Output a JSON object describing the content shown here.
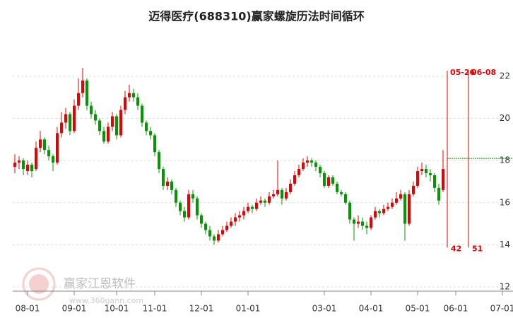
{
  "chart_data": {
    "type": "candlestick",
    "title": "迈得医疗(688310)赢家螺旋历法时间循环",
    "watermark": [
      "赢家江恩软件",
      "www.360gann.com"
    ],
    "up_color": "#e60000",
    "down_color": "#009900",
    "ylim": [
      11.8,
      22.6
    ],
    "yticks": [
      12,
      14,
      16,
      18,
      20,
      22
    ],
    "grid": true,
    "categories": [
      null,
      null,
      null,
      "08-01",
      null,
      null,
      null,
      null,
      null,
      null,
      null,
      null,
      null,
      null,
      "09-01",
      null,
      null,
      null,
      null,
      null,
      null,
      null,
      null,
      null,
      "10-01",
      null,
      null,
      null,
      null,
      null,
      null,
      null,
      null,
      "11-01",
      null,
      null,
      null,
      null,
      null,
      null,
      null,
      null,
      null,
      null,
      "12-01",
      null,
      null,
      null,
      null,
      null,
      null,
      null,
      null,
      null,
      null,
      "01-01",
      null,
      null,
      null,
      null,
      null,
      null,
      null,
      null,
      null,
      null,
      null,
      null,
      null,
      null,
      null,
      null,
      null,
      "03-01",
      null,
      null,
      null,
      null,
      null,
      null,
      null,
      null,
      null,
      null,
      "04-01",
      null,
      null,
      null,
      null,
      null,
      null,
      null,
      null,
      null,
      null,
      "05-01",
      null,
      null,
      null,
      null,
      null,
      null,
      "05-26",
      null,
      "06-01",
      null,
      null,
      "06-08",
      null,
      null,
      null,
      null,
      null,
      null,
      null,
      "07-01",
      null,
      null
    ],
    "xticks": [
      "08-01",
      "09-01",
      "10-01",
      "11-01",
      "12-01",
      "01-01",
      "03-01",
      "04-01",
      "05-01",
      "06-01",
      "07-01"
    ],
    "ohlc": [
      [
        17.7,
        18.3,
        17.4,
        17.9
      ],
      [
        17.9,
        18.2,
        17.6,
        18.0
      ],
      [
        18.0,
        18.1,
        17.3,
        17.6
      ],
      [
        17.5,
        18.0,
        17.3,
        17.8
      ],
      [
        17.8,
        17.9,
        17.2,
        17.5
      ],
      [
        17.6,
        18.9,
        17.5,
        18.6
      ],
      [
        18.6,
        19.4,
        18.4,
        19.0
      ],
      [
        19.0,
        19.1,
        18.3,
        18.5
      ],
      [
        18.5,
        18.7,
        18.0,
        18.2
      ],
      [
        18.2,
        18.3,
        17.5,
        17.9
      ],
      [
        17.9,
        19.6,
        17.8,
        19.3
      ],
      [
        19.3,
        20.3,
        19.1,
        19.8
      ],
      [
        19.8,
        20.5,
        19.5,
        20.2
      ],
      [
        20.2,
        20.3,
        19.2,
        19.4
      ],
      [
        19.4,
        20.9,
        19.3,
        20.6
      ],
      [
        20.6,
        21.9,
        20.4,
        21.2
      ],
      [
        21.2,
        22.4,
        21.0,
        21.8
      ],
      [
        21.8,
        21.9,
        20.4,
        20.6
      ],
      [
        20.6,
        20.8,
        20.0,
        20.2
      ],
      [
        20.2,
        20.4,
        19.7,
        19.9
      ],
      [
        19.9,
        20.0,
        19.2,
        19.4
      ],
      [
        19.4,
        19.6,
        18.8,
        18.9
      ],
      [
        18.9,
        19.8,
        18.8,
        19.6
      ],
      [
        19.6,
        20.3,
        19.4,
        20.1
      ],
      [
        20.1,
        20.2,
        19.0,
        19.2
      ],
      [
        19.2,
        20.6,
        19.1,
        20.4
      ],
      [
        20.4,
        21.3,
        20.2,
        21.0
      ],
      [
        21.0,
        21.6,
        20.8,
        21.2
      ],
      [
        21.2,
        21.4,
        20.8,
        21.0
      ],
      [
        21.0,
        21.2,
        20.4,
        20.6
      ],
      [
        20.6,
        20.7,
        19.6,
        19.8
      ],
      [
        19.8,
        19.9,
        19.2,
        19.4
      ],
      [
        19.4,
        19.6,
        19.0,
        19.2
      ],
      [
        19.2,
        19.3,
        18.2,
        18.4
      ],
      [
        18.4,
        18.5,
        17.4,
        17.6
      ],
      [
        17.6,
        17.7,
        16.6,
        16.8
      ],
      [
        16.8,
        17.2,
        16.6,
        17.0
      ],
      [
        17.0,
        17.1,
        16.4,
        16.6
      ],
      [
        16.6,
        16.7,
        15.8,
        16.0
      ],
      [
        16.0,
        16.1,
        15.4,
        15.6
      ],
      [
        15.6,
        15.8,
        15.1,
        15.3
      ],
      [
        15.3,
        16.6,
        15.2,
        16.4
      ],
      [
        16.4,
        16.6,
        16.0,
        16.2
      ],
      [
        16.2,
        16.3,
        15.2,
        15.4
      ],
      [
        15.4,
        15.5,
        14.8,
        15.0
      ],
      [
        15.0,
        15.1,
        14.5,
        14.7
      ],
      [
        14.7,
        14.9,
        14.2,
        14.4
      ],
      [
        14.4,
        14.5,
        14.0,
        14.2
      ],
      [
        14.2,
        14.7,
        14.1,
        14.5
      ],
      [
        14.5,
        14.9,
        14.4,
        14.7
      ],
      [
        14.7,
        15.1,
        14.6,
        14.9
      ],
      [
        14.9,
        15.3,
        14.8,
        15.1
      ],
      [
        15.1,
        15.5,
        14.9,
        15.3
      ],
      [
        15.3,
        15.6,
        15.1,
        15.4
      ],
      [
        15.4,
        15.8,
        15.2,
        15.6
      ],
      [
        15.6,
        16.0,
        15.5,
        15.8
      ],
      [
        15.8,
        15.9,
        15.5,
        15.7
      ],
      [
        15.7,
        16.2,
        15.6,
        16.0
      ],
      [
        16.0,
        16.3,
        15.9,
        16.1
      ],
      [
        16.1,
        16.2,
        15.8,
        16.0
      ],
      [
        16.0,
        16.5,
        15.9,
        16.3
      ],
      [
        16.3,
        16.6,
        16.2,
        16.4
      ],
      [
        16.4,
        18.0,
        16.3,
        16.6
      ],
      [
        16.6,
        16.7,
        15.9,
        16.2
      ],
      [
        16.2,
        16.7,
        16.1,
        16.5
      ],
      [
        16.5,
        17.1,
        16.4,
        16.9
      ],
      [
        16.9,
        17.5,
        16.8,
        17.3
      ],
      [
        17.3,
        17.8,
        17.2,
        17.6
      ],
      [
        17.6,
        18.1,
        17.5,
        17.9
      ],
      [
        17.9,
        18.2,
        17.7,
        18.0
      ],
      [
        18.0,
        18.1,
        17.7,
        17.9
      ],
      [
        17.9,
        18.0,
        17.5,
        17.7
      ],
      [
        17.7,
        17.8,
        17.2,
        17.4
      ],
      [
        17.4,
        17.5,
        16.7,
        16.8
      ],
      [
        16.8,
        17.3,
        16.7,
        17.2
      ],
      [
        17.2,
        17.3,
        16.8,
        16.9
      ],
      [
        16.9,
        17.0,
        16.4,
        16.5
      ],
      [
        16.5,
        16.6,
        16.3,
        16.4
      ],
      [
        16.4,
        16.5,
        15.9,
        16.0
      ],
      [
        16.0,
        16.1,
        15.0,
        15.2
      ],
      [
        15.2,
        15.3,
        14.2,
        15.0
      ],
      [
        15.0,
        15.4,
        14.8,
        15.1
      ],
      [
        15.1,
        15.3,
        14.7,
        14.9
      ],
      [
        14.9,
        15.1,
        14.5,
        14.8
      ],
      [
        14.8,
        15.4,
        14.7,
        15.3
      ],
      [
        15.3,
        15.8,
        15.2,
        15.6
      ],
      [
        15.6,
        15.7,
        15.3,
        15.5
      ],
      [
        15.5,
        15.9,
        15.4,
        15.7
      ],
      [
        15.7,
        16.0,
        15.6,
        15.8
      ],
      [
        15.8,
        16.2,
        15.7,
        16.0
      ],
      [
        16.0,
        16.5,
        15.9,
        16.2
      ],
      [
        16.2,
        16.6,
        16.1,
        16.4
      ],
      [
        16.4,
        16.5,
        14.2,
        15.0
      ],
      [
        15.0,
        16.6,
        14.9,
        16.4
      ],
      [
        16.4,
        17.0,
        16.3,
        16.8
      ],
      [
        16.8,
        17.7,
        16.7,
        17.5
      ],
      [
        17.5,
        17.9,
        17.3,
        17.6
      ],
      [
        17.6,
        17.8,
        17.2,
        17.4
      ],
      [
        17.4,
        17.6,
        17.0,
        17.3
      ],
      [
        17.3,
        17.4,
        16.5,
        16.7
      ],
      [
        16.7,
        16.9,
        15.9,
        16.1
      ],
      [
        16.6,
        18.5,
        16.5,
        17.6
      ]
    ],
    "hline": {
      "value": 18.1,
      "color": "#009900"
    },
    "cycles": [
      {
        "date": "05-26",
        "count": 42
      },
      {
        "date": "06-08",
        "count": 51
      }
    ],
    "cycle_color": "#e60000"
  }
}
